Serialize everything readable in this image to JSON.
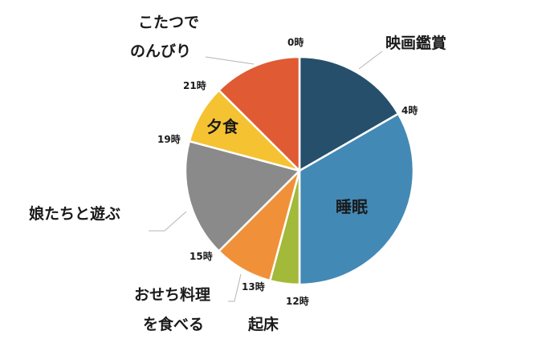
{
  "chart_data": {
    "type": "pie",
    "slices": [
      {
        "label": "映画鑑賞",
        "start_hour": 0,
        "end_hour": 4,
        "value": 4,
        "color": "#264f6c"
      },
      {
        "label": "睡眠",
        "start_hour": 4,
        "end_hour": 12,
        "value": 8,
        "color": "#4389b5"
      },
      {
        "label": "起床",
        "start_hour": 12,
        "end_hour": 13,
        "value": 1,
        "color": "#a3b93a"
      },
      {
        "label": "おせち料理を食べる",
        "label_lines": [
          "おせち料理",
          "を食べる"
        ],
        "start_hour": 13,
        "end_hour": 15,
        "value": 2,
        "color": "#f0913a"
      },
      {
        "label": "娘たちと遊ぶ",
        "start_hour": 15,
        "end_hour": 19,
        "value": 4,
        "color": "#8a8a8a"
      },
      {
        "label": "夕食",
        "start_hour": 19,
        "end_hour": 21,
        "value": 2,
        "color": "#f5c232"
      },
      {
        "label": "こたつでのんびり",
        "label_lines": [
          "こたつで",
          "のんびり"
        ],
        "start_hour": 21,
        "end_hour": 24,
        "value": 3,
        "color": "#e05a33"
      }
    ],
    "hour_ticks": [
      "0時",
      "4時",
      "12時",
      "13時",
      "15時",
      "19時",
      "21時"
    ],
    "total_hours": 24
  }
}
